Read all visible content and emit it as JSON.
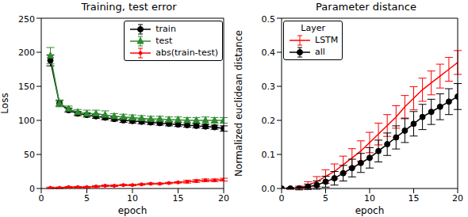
{
  "chart_data": [
    {
      "type": "line",
      "title": "Training, test error",
      "x_label": "epoch",
      "y_label": "Loss",
      "xlim": [
        0,
        20
      ],
      "xticks": [
        0,
        5,
        10,
        15,
        20
      ],
      "ylim": [
        0,
        250
      ],
      "yticks": [
        0,
        50,
        100,
        150,
        200,
        250
      ],
      "grid": false,
      "legend": "upper right",
      "x": [
        1,
        2,
        3,
        4,
        5,
        6,
        7,
        8,
        9,
        10,
        11,
        12,
        13,
        14,
        15,
        16,
        17,
        18,
        19,
        20
      ],
      "series": [
        {
          "name": "train",
          "color": "#000000",
          "marker": "circle",
          "line_style": "solid",
          "values": [
            188,
            125,
            115,
            110,
            108,
            106,
            104,
            102,
            100,
            99,
            98,
            97,
            96,
            95,
            94,
            93,
            92,
            91,
            90,
            88
          ],
          "errors": [
            8,
            4,
            3,
            3,
            3,
            3,
            3,
            3,
            3,
            3,
            3,
            3,
            3,
            3,
            3,
            3,
            3,
            3,
            3,
            4
          ]
        },
        {
          "name": "test",
          "color": "#2e8b2e",
          "marker": "triangle",
          "line_style": "solid",
          "values": [
            195,
            125,
            117,
            112,
            110,
            110,
            108,
            106,
            105,
            104,
            103,
            102,
            102,
            101,
            101,
            100,
            100,
            100,
            100,
            100
          ],
          "errors": [
            12,
            5,
            4,
            4,
            5,
            5,
            6,
            4,
            4,
            4,
            4,
            4,
            4,
            4,
            4,
            4,
            4,
            5,
            4,
            4
          ]
        },
        {
          "name": "abs(train-test)",
          "color": "#ff0000",
          "marker": "circle_small",
          "line_style": "solid",
          "values": [
            1,
            1,
            2,
            2,
            2,
            3,
            4,
            4,
            5,
            5,
            6,
            7,
            7,
            8,
            9,
            10,
            11,
            12,
            12,
            13
          ],
          "errors": [
            1,
            1,
            1,
            1,
            1,
            1,
            1,
            1,
            1,
            1,
            1,
            1,
            1,
            1,
            1,
            2,
            2,
            2,
            2,
            2
          ]
        }
      ]
    },
    {
      "type": "line",
      "title": "Parameter distance",
      "x_label": "epoch",
      "y_label": "Normalized euclidean distance",
      "xlim": [
        0,
        20
      ],
      "xticks": [
        0,
        5,
        10,
        15,
        20
      ],
      "ylim": [
        0,
        0.5
      ],
      "yticks": [
        {
          "value": 0,
          "label": "0.0"
        },
        0.1,
        0.2,
        0.3,
        0.4,
        0.5
      ],
      "grid": false,
      "legend": "upper left",
      "legend_title": "Layer",
      "x": [
        0,
        1,
        2,
        3,
        4,
        5,
        6,
        7,
        8,
        9,
        10,
        11,
        12,
        13,
        14,
        15,
        16,
        17,
        18,
        19,
        20
      ],
      "series": [
        {
          "name": "LSTM",
          "color": "#ff0000",
          "marker": "none",
          "line_style": "solid",
          "values": [
            0,
            0,
            0.002,
            0.01,
            0.02,
            0.035,
            0.05,
            0.07,
            0.09,
            0.11,
            0.135,
            0.16,
            0.185,
            0.21,
            0.24,
            0.265,
            0.29,
            0.31,
            0.33,
            0.35,
            0.37
          ],
          "errors": [
            0,
            0.002,
            0.005,
            0.01,
            0.015,
            0.02,
            0.022,
            0.025,
            0.027,
            0.03,
            0.03,
            0.032,
            0.032,
            0.033,
            0.033,
            0.034,
            0.034,
            0.035,
            0.035,
            0.035,
            0.035
          ]
        },
        {
          "name": "all",
          "color": "#000000",
          "marker": "circle",
          "line_style": "solid",
          "values": [
            0,
            0,
            0,
            0.005,
            0.01,
            0.02,
            0.03,
            0.045,
            0.06,
            0.075,
            0.09,
            0.11,
            0.13,
            0.15,
            0.17,
            0.19,
            0.21,
            0.225,
            0.24,
            0.255,
            0.27
          ],
          "errors": [
            0,
            0.002,
            0.004,
            0.008,
            0.012,
            0.016,
            0.02,
            0.023,
            0.026,
            0.028,
            0.03,
            0.032,
            0.033,
            0.034,
            0.035,
            0.036,
            0.037,
            0.037,
            0.038,
            0.038,
            0.038
          ]
        }
      ]
    }
  ]
}
